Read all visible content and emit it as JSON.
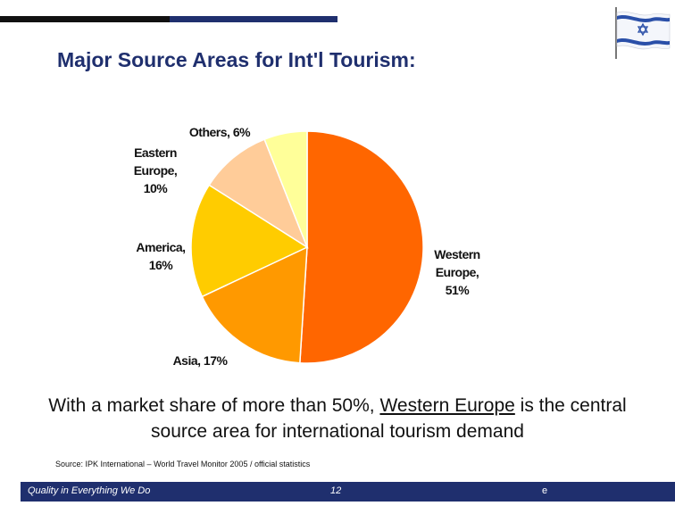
{
  "title": "Major Source Areas for Int'l Tourism:",
  "chart_data": {
    "type": "pie",
    "slices": [
      {
        "line1": "Western",
        "line2": "Europe,",
        "line3": "51%",
        "value": 51,
        "color": "#ff6600"
      },
      {
        "line1": "Asia, 17%",
        "line2": "",
        "line3": "",
        "value": 17,
        "color": "#ff9900"
      },
      {
        "line1": "America,",
        "line2": "16%",
        "line3": "",
        "value": 16,
        "color": "#ffcc00"
      },
      {
        "line1": "Eastern",
        "line2": "Europe,",
        "line3": "10%",
        "value": 10,
        "color": "#ffcc99"
      },
      {
        "line1": "Others, 6%",
        "line2": "",
        "line3": "",
        "value": 6,
        "color": "#ffff99"
      }
    ]
  },
  "caption": {
    "before": "With a market share of more than 50%, ",
    "highlight": "Western Europe",
    "after": " is the central source area for international tourism demand"
  },
  "source": "Source: IPK International – World Travel Monitor 2005 / official statistics",
  "footer": {
    "left": "Quality in Everything We Do",
    "page": "12",
    "right": "e",
    "color": "#1f2f6e"
  },
  "flag": {
    "name": "israel-flag-icon",
    "blue": "#2a4fa8"
  }
}
